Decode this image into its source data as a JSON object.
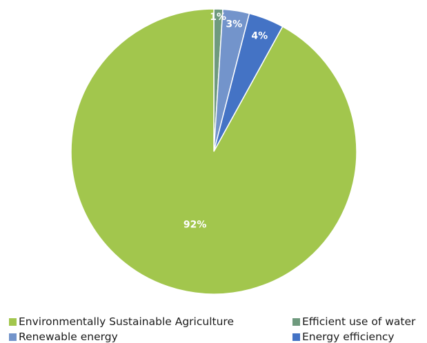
{
  "chart_data": {
    "type": "pie",
    "slices": [
      {
        "name": "Efficient use of water",
        "value": 1,
        "label": "1%",
        "color": "#6f9a7e"
      },
      {
        "name": "Renewable energy",
        "value": 3,
        "label": "3%",
        "color": "#7394cb"
      },
      {
        "name": "Energy efficiency",
        "value": 4,
        "label": "4%",
        "color": "#4473c5"
      },
      {
        "name": "Environmentally Sustainable Agriculture",
        "value": 92,
        "label": "92%",
        "color": "#a2c64d"
      }
    ],
    "start_angle_deg": 0,
    "direction": "clockwise",
    "legend_position": "bottom"
  },
  "legend": [
    {
      "label": "Environmentally Sustainable Agriculture",
      "color": "#a2c64d"
    },
    {
      "label": "Efficient use of water",
      "color": "#6f9a7e"
    },
    {
      "label": "Renewable energy",
      "color": "#7394cb"
    },
    {
      "label": "Energy efficiency",
      "color": "#4473c5"
    }
  ]
}
